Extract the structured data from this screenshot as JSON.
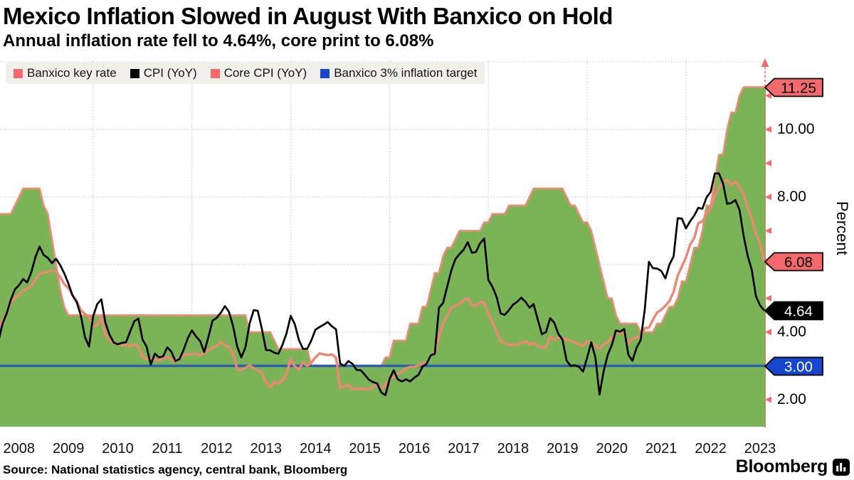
{
  "header": {
    "title": "Mexico Inflation Slowed in August With Banxico on Hold",
    "subtitle": "Annual inflation rate fell to 4.64%, core print to 6.08%"
  },
  "legend": {
    "items": [
      {
        "label": "Banxico key rate",
        "color": "#F4696B"
      },
      {
        "label": "CPI (YoY)",
        "color": "#000000"
      },
      {
        "label": "Core CPI (YoY)",
        "color": "#F4696B"
      },
      {
        "label": "Banxico 3% inflation target",
        "color": "#1645CE"
      }
    ]
  },
  "y_axis": {
    "title": "Percent",
    "axis_color": "#F4696B",
    "labeled_ticks": [
      {
        "value": 10,
        "label": "10.00"
      },
      {
        "value": 8,
        "label": "8.00"
      },
      {
        "value": 4,
        "label": "4.00"
      },
      {
        "value": 2,
        "label": "2.00"
      }
    ],
    "minor_tick_values": [
      2,
      3,
      4,
      5,
      6,
      7,
      8,
      9,
      10,
      11
    ],
    "badges": [
      {
        "label": "11.25",
        "value": 11.25,
        "bg": "#F4696B",
        "fg": "#000000"
      },
      {
        "label": "6.08",
        "value": 6.08,
        "bg": "#F4696B",
        "fg": "#000000"
      },
      {
        "label": "4.64",
        "value": 4.64,
        "bg": "#000000",
        "fg": "#FFFFFF"
      },
      {
        "label": "3.00",
        "value": 3.0,
        "bg": "#1645CE",
        "fg": "#FFFFFF"
      }
    ]
  },
  "x_axis": {
    "years": [
      "2008",
      "2009",
      "2010",
      "2011",
      "2012",
      "2013",
      "2014",
      "2015",
      "2016",
      "2017",
      "2018",
      "2019",
      "2020",
      "2021",
      "2022",
      "2023"
    ]
  },
  "grid": {
    "h_values": [
      2,
      4,
      6,
      8,
      10,
      12
    ],
    "v_years": [
      2010,
      2012,
      2014,
      2016,
      2018,
      2020,
      2022
    ]
  },
  "chart_data": {
    "type": "line",
    "title": "Mexico Inflation Slowed in August With Banxico on Hold",
    "frequency": "monthly",
    "x_range": [
      "2008-01",
      "2023-08"
    ],
    "ylabel": "Percent",
    "ylim": [
      1.2,
      12.0
    ],
    "grid": "dashed",
    "legend_position": "top-left",
    "series": [
      {
        "name": "Banxico key rate",
        "style": "area",
        "fill": "#7AB456",
        "stroke": "#ED8C74",
        "values": [
          7.5,
          7.5,
          7.5,
          7.5,
          7.5,
          7.75,
          8.0,
          8.25,
          8.25,
          8.25,
          8.25,
          8.25,
          7.75,
          7.5,
          6.75,
          6.0,
          5.25,
          4.75,
          4.5,
          4.5,
          4.5,
          4.5,
          4.5,
          4.5,
          4.5,
          4.5,
          4.5,
          4.5,
          4.5,
          4.5,
          4.5,
          4.5,
          4.5,
          4.5,
          4.5,
          4.5,
          4.5,
          4.5,
          4.5,
          4.5,
          4.5,
          4.5,
          4.5,
          4.5,
          4.5,
          4.5,
          4.5,
          4.5,
          4.5,
          4.5,
          4.5,
          4.5,
          4.5,
          4.5,
          4.5,
          4.5,
          4.5,
          4.5,
          4.5,
          4.5,
          4.5,
          4.5,
          4.0,
          4.0,
          4.0,
          4.0,
          4.0,
          4.0,
          3.75,
          3.5,
          3.5,
          3.5,
          3.5,
          3.5,
          3.5,
          3.5,
          3.5,
          3.0,
          3.0,
          3.0,
          3.0,
          3.0,
          3.0,
          3.0,
          3.0,
          3.0,
          3.0,
          3.0,
          3.0,
          3.0,
          3.0,
          3.0,
          3.0,
          3.0,
          3.0,
          3.25,
          3.25,
          3.75,
          3.75,
          3.75,
          3.75,
          4.25,
          4.25,
          4.25,
          4.75,
          4.75,
          5.25,
          5.75,
          5.75,
          6.25,
          6.5,
          6.5,
          6.75,
          7.0,
          7.0,
          7.0,
          7.0,
          7.0,
          7.0,
          7.25,
          7.25,
          7.5,
          7.5,
          7.5,
          7.5,
          7.75,
          7.75,
          7.75,
          7.75,
          7.75,
          8.0,
          8.25,
          8.25,
          8.25,
          8.25,
          8.25,
          8.25,
          8.25,
          8.25,
          8.0,
          7.75,
          7.75,
          7.5,
          7.25,
          7.25,
          7.0,
          6.5,
          6.0,
          5.5,
          5.0,
          5.0,
          4.5,
          4.25,
          4.25,
          4.25,
          4.25,
          4.25,
          4.0,
          4.0,
          4.0,
          4.0,
          4.25,
          4.25,
          4.5,
          4.75,
          4.75,
          5.0,
          5.5,
          5.5,
          6.0,
          6.5,
          6.5,
          7.0,
          7.75,
          7.75,
          8.5,
          9.25,
          9.25,
          10.0,
          10.5,
          10.5,
          11.0,
          11.25,
          11.25,
          11.25,
          11.25,
          11.25,
          11.25
        ]
      },
      {
        "name": "CPI (YoY)",
        "style": "line",
        "stroke": "#000000",
        "values": [
          3.7,
          3.72,
          4.25,
          4.55,
          4.95,
          5.26,
          5.39,
          5.57,
          5.47,
          5.78,
          6.23,
          6.53,
          6.28,
          6.2,
          6.04,
          6.17,
          5.98,
          5.74,
          5.44,
          5.08,
          4.89,
          4.5,
          3.86,
          3.57,
          4.46,
          4.83,
          4.97,
          4.27,
          3.92,
          3.69,
          3.64,
          3.68,
          3.7,
          4.02,
          4.32,
          4.4,
          3.78,
          3.57,
          3.04,
          3.36,
          3.25,
          3.28,
          3.55,
          3.42,
          3.14,
          3.2,
          3.48,
          3.82,
          4.05,
          3.87,
          3.73,
          3.41,
          3.85,
          4.34,
          4.42,
          4.57,
          4.77,
          4.6,
          4.18,
          3.57,
          3.25,
          3.55,
          4.25,
          4.65,
          4.63,
          4.09,
          3.47,
          3.46,
          3.39,
          3.36,
          3.62,
          3.97,
          4.48,
          4.23,
          3.76,
          3.5,
          3.51,
          3.75,
          4.07,
          4.15,
          4.22,
          4.3,
          4.17,
          4.08,
          3.07,
          3.0,
          3.14,
          3.06,
          2.88,
          2.87,
          2.74,
          2.59,
          2.52,
          2.48,
          2.21,
          2.13,
          2.61,
          2.87,
          2.6,
          2.54,
          2.6,
          2.54,
          2.65,
          2.73,
          2.97,
          3.06,
          3.31,
          3.36,
          4.72,
          4.86,
          5.35,
          5.82,
          6.16,
          6.31,
          6.44,
          6.66,
          6.35,
          6.37,
          6.63,
          6.77,
          5.55,
          5.34,
          5.04,
          4.55,
          4.51,
          4.65,
          4.81,
          4.9,
          5.02,
          4.9,
          4.72,
          4.83,
          4.37,
          3.94,
          4.0,
          4.41,
          4.28,
          3.95,
          3.78,
          3.16,
          3.0,
          3.02,
          2.97,
          2.83,
          3.24,
          3.7,
          3.25,
          2.15,
          2.84,
          3.33,
          3.62,
          4.05,
          4.01,
          4.09,
          3.33,
          3.15,
          3.54,
          3.76,
          4.67,
          6.08,
          5.89,
          5.88,
          5.81,
          5.59,
          6.0,
          6.24,
          7.37,
          7.36,
          7.07,
          7.28,
          7.45,
          7.68,
          7.65,
          7.99,
          8.15,
          8.7,
          8.7,
          8.41,
          7.8,
          7.82,
          7.91,
          7.62,
          6.85,
          6.25,
          5.84,
          5.06,
          4.79,
          4.64
        ]
      },
      {
        "name": "Core CPI (YoY)",
        "style": "line",
        "stroke": "#EE8772",
        "values": [
          4.06,
          4.13,
          4.34,
          4.56,
          4.86,
          5.02,
          5.11,
          5.22,
          5.3,
          5.36,
          5.56,
          5.73,
          5.76,
          5.78,
          5.82,
          5.81,
          5.63,
          5.42,
          5.31,
          5.1,
          4.92,
          4.65,
          4.54,
          4.46,
          4.16,
          4.22,
          4.42,
          3.91,
          3.74,
          3.68,
          3.66,
          3.6,
          3.62,
          3.58,
          3.64,
          3.58,
          3.26,
          3.22,
          3.21,
          3.19,
          3.17,
          3.22,
          3.26,
          3.2,
          3.12,
          3.2,
          3.31,
          3.35,
          3.35,
          3.37,
          3.31,
          3.38,
          3.46,
          3.54,
          3.59,
          3.7,
          3.61,
          3.56,
          3.37,
          2.9,
          2.88,
          2.94,
          3.02,
          2.93,
          2.88,
          2.79,
          2.5,
          2.37,
          2.52,
          2.48,
          2.56,
          2.78,
          3.21,
          2.98,
          2.89,
          3.11,
          3.0,
          3.09,
          3.25,
          3.37,
          3.34,
          3.32,
          3.34,
          3.24,
          2.34,
          2.4,
          2.45,
          2.31,
          2.33,
          2.33,
          2.31,
          2.3,
          2.38,
          2.47,
          2.34,
          2.41,
          2.64,
          2.66,
          2.76,
          2.83,
          2.93,
          2.97,
          2.97,
          3.01,
          3.07,
          3.1,
          3.29,
          3.44,
          3.84,
          4.27,
          4.48,
          4.72,
          4.78,
          4.83,
          4.94,
          5.0,
          4.8,
          4.77,
          4.9,
          4.87,
          4.56,
          4.27,
          4.02,
          3.71,
          3.69,
          3.62,
          3.63,
          3.63,
          3.67,
          3.73,
          3.63,
          3.68,
          3.6,
          3.54,
          3.55,
          3.87,
          3.77,
          3.85,
          3.82,
          3.78,
          3.75,
          3.68,
          3.65,
          3.59,
          3.73,
          3.66,
          3.6,
          3.5,
          3.64,
          3.71,
          3.85,
          3.97,
          3.99,
          3.98,
          3.66,
          3.8,
          3.84,
          3.87,
          4.12,
          4.13,
          4.37,
          4.58,
          4.66,
          4.78,
          4.92,
          5.19,
          5.67,
          5.94,
          6.21,
          6.59,
          6.78,
          7.22,
          7.28,
          7.49,
          7.65,
          8.05,
          8.28,
          8.42,
          8.51,
          8.35,
          8.45,
          8.29,
          8.09,
          7.67,
          7.39,
          6.89,
          6.64,
          6.08
        ]
      },
      {
        "name": "Banxico 3% inflation target",
        "style": "hline",
        "stroke": "#2A5FB2",
        "value": 3.0
      }
    ]
  },
  "source": {
    "text": "Source: National statistics agency, central bank, Bloomberg"
  },
  "branding": {
    "name": "Bloomberg"
  }
}
